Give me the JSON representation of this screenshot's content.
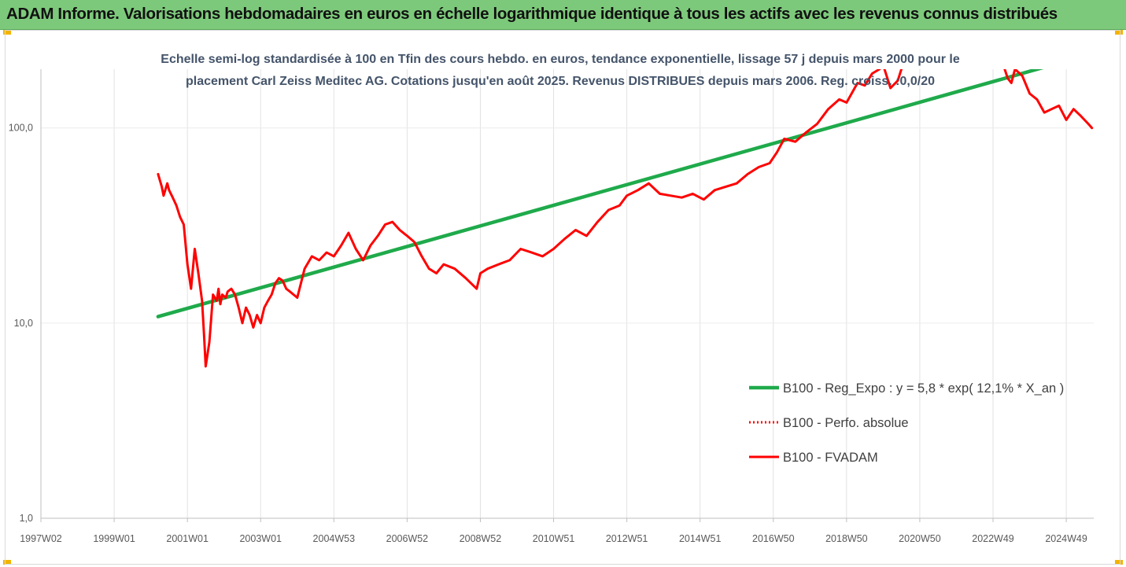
{
  "header": {
    "title": "ADAM Informe. Valorisations hebdomadaires en euros en échelle logarithmique identique à tous les actifs avec les revenus connus distribués"
  },
  "colors": {
    "header_bg": "#7dc97b",
    "trend": "#1faa4b",
    "series": "#ff0000",
    "corner_accent": "#f2b400"
  },
  "chart_data": {
    "type": "line",
    "title_lines": [
      "Echelle semi-log standardisée à 100 en Tfin des cours hebdo. en euros, tendance exponentielle, lissage 57 j depuis mars 2000 pour le",
      "placement Carl Zeiss Meditec AG. Cotations jusqu'en août 2025. Revenus DISTRIBUES depuis mars 2006. Reg. croiss. :0,0/20"
    ],
    "y_scale": "log",
    "ylim": [
      1,
      200
    ],
    "y_ticks": [
      {
        "value": 1,
        "label": "1,0"
      },
      {
        "value": 10,
        "label": "10,0"
      },
      {
        "value": 100,
        "label": "100,0"
      }
    ],
    "xlim": [
      1997.0,
      2025.75
    ],
    "x_ticks": [
      {
        "value": 1997.0,
        "label": "1997W02"
      },
      {
        "value": 1999.0,
        "label": "1999W01"
      },
      {
        "value": 2001.0,
        "label": "2001W01"
      },
      {
        "value": 2003.0,
        "label": "2003W01"
      },
      {
        "value": 2005.0,
        "label": "2004W53"
      },
      {
        "value": 2007.0,
        "label": "2006W52"
      },
      {
        "value": 2009.0,
        "label": "2008W52"
      },
      {
        "value": 2011.0,
        "label": "2010W51"
      },
      {
        "value": 2013.0,
        "label": "2012W51"
      },
      {
        "value": 2015.0,
        "label": "2014W51"
      },
      {
        "value": 2017.0,
        "label": "2016W50"
      },
      {
        "value": 2019.0,
        "label": "2018W50"
      },
      {
        "value": 2021.0,
        "label": "2020W50"
      },
      {
        "value": 2023.0,
        "label": "2022W49"
      },
      {
        "value": 2025.0,
        "label": "2024W49"
      }
    ],
    "grid": "vertical",
    "legend_position": "right",
    "series": [
      {
        "name": "B100 - Reg_Expo : y = 5,8 * exp( 12,1% *  X_an )",
        "style": "solid-thick",
        "color": "#1faa4b",
        "x": [
          2000.2,
          2025.7
        ],
        "y": [
          10.8,
          240
        ]
      },
      {
        "name": "B100 - Perfo. absolue",
        "style": "dotted",
        "color": "#ff0000",
        "x": [],
        "y": []
      },
      {
        "name": "B100 - FVADAM",
        "style": "solid",
        "color": "#ff0000",
        "x": [
          2000.2,
          2000.3,
          2000.35,
          2000.45,
          2000.5,
          2000.6,
          2000.7,
          2000.8,
          2000.9,
          2001.0,
          2001.1,
          2001.2,
          2001.3,
          2001.4,
          2001.45,
          2001.5,
          2001.6,
          2001.7,
          2001.8,
          2001.85,
          2001.9,
          2001.95,
          2002.05,
          2002.1,
          2002.2,
          2002.3,
          2002.4,
          2002.5,
          2002.6,
          2002.7,
          2002.8,
          2002.9,
          2003.0,
          2003.1,
          2003.2,
          2003.3,
          2003.4,
          2003.5,
          2003.6,
          2003.7,
          2003.8,
          2003.9,
          2004.0,
          2004.2,
          2004.4,
          2004.6,
          2004.8,
          2005.0,
          2005.2,
          2005.4,
          2005.6,
          2005.8,
          2006.0,
          2006.2,
          2006.4,
          2006.6,
          2006.8,
          2007.0,
          2007.2,
          2007.4,
          2007.6,
          2007.8,
          2008.0,
          2008.3,
          2008.6,
          2008.9,
          2009.0,
          2009.2,
          2009.5,
          2009.8,
          2010.1,
          2010.4,
          2010.7,
          2011.0,
          2011.3,
          2011.6,
          2011.9,
          2012.2,
          2012.5,
          2012.8,
          2013.0,
          2013.3,
          2013.6,
          2013.9,
          2014.2,
          2014.5,
          2014.8,
          2015.1,
          2015.4,
          2015.7,
          2016.0,
          2016.3,
          2016.6,
          2016.9,
          2017.1,
          2017.3,
          2017.6,
          2017.9,
          2018.2,
          2018.5,
          2018.8,
          2019.0,
          2019.3,
          2019.5,
          2019.7,
          2019.9,
          2020.0,
          2020.2,
          2020.4,
          2020.6,
          2020.8,
          2023.3,
          2023.4,
          2023.5,
          2023.6,
          2023.8,
          2024.0,
          2024.2,
          2024.4,
          2024.6,
          2024.8,
          2025.0,
          2025.2,
          2025.4,
          2025.6,
          2025.7
        ],
        "y": [
          58,
          50,
          45,
          52,
          48,
          44,
          40,
          35,
          32,
          20,
          15,
          24,
          18,
          13,
          9,
          6,
          8,
          14,
          13,
          15,
          12.5,
          14,
          13.5,
          14.5,
          15,
          14,
          12,
          10,
          12,
          11,
          9.5,
          11,
          10,
          12,
          13,
          14,
          16,
          17,
          16.5,
          15,
          14.5,
          14,
          13.5,
          19,
          22,
          21,
          23,
          22,
          25,
          29,
          24,
          21,
          25,
          28,
          32,
          33,
          30,
          28,
          26,
          22,
          19,
          18,
          20,
          19,
          17,
          15,
          18,
          19,
          20,
          21,
          24,
          23,
          22,
          24,
          27,
          30,
          28,
          33,
          38,
          40,
          45,
          48,
          52,
          46,
          45,
          44,
          46,
          43,
          48,
          50,
          52,
          58,
          63,
          66,
          75,
          88,
          85,
          95,
          105,
          125,
          140,
          135,
          170,
          165,
          190,
          200,
          210,
          160,
          175,
          230,
          215,
          205,
          180,
          170,
          200,
          185,
          150,
          140,
          120,
          125,
          130,
          110,
          125,
          115,
          105,
          100
        ]
      }
    ]
  }
}
